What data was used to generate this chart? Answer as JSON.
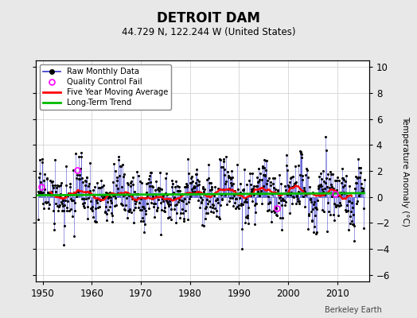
{
  "title": "DETROIT DAM",
  "subtitle": "44.729 N, 122.244 W (United States)",
  "credit": "Berkeley Earth",
  "ylabel": "Temperature Anomaly (°C)",
  "xlim": [
    1948.5,
    2016.5
  ],
  "ylim": [
    -6.5,
    10.5
  ],
  "yticks": [
    -6,
    -4,
    -2,
    0,
    2,
    4,
    6,
    8,
    10
  ],
  "xticks": [
    1950,
    1960,
    1970,
    1980,
    1990,
    2000,
    2010
  ],
  "background_color": "#e8e8e8",
  "plot_bg_color": "#ffffff",
  "grid_color": "#cccccc",
  "raw_line_color": "#3333cc",
  "raw_marker_color": "#000000",
  "ma_color": "#ff0000",
  "trend_color": "#00bb00",
  "qc_color": "#ff00ff",
  "seed": 17,
  "start_year": 1949.0,
  "end_year": 2015.5,
  "n_months": 792
}
